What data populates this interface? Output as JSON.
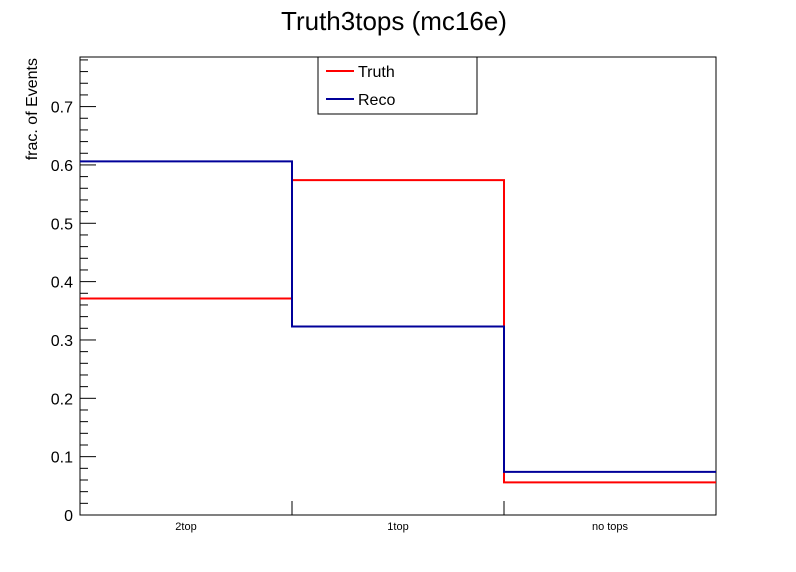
{
  "chart_data": {
    "type": "line",
    "title": "Truth3tops (mc16e)",
    "xlabel": "",
    "ylabel": "frac. of Events",
    "categories": [
      "2top",
      "1top",
      "no tops"
    ],
    "ylim": [
      0,
      0.785
    ],
    "yticks": [
      "0",
      "0.1",
      "0.2",
      "0.3",
      "0.4",
      "0.5",
      "0.6",
      "0.7"
    ],
    "grid": false,
    "legend_position": "top-center",
    "series": [
      {
        "name": "Truth",
        "color": "#ff0000",
        "values": [
          0.371,
          0.574,
          0.056
        ]
      },
      {
        "name": "Reco",
        "color": "#000099",
        "values": [
          0.606,
          0.323,
          0.074
        ]
      }
    ]
  }
}
